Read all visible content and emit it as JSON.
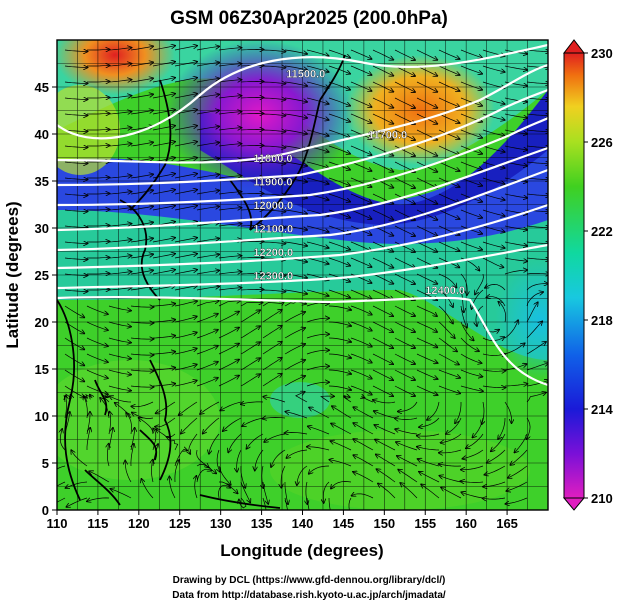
{
  "title": "GSM 06Z30Apr2025 (200.0hPa)",
  "xlabel": "Longitude (degrees)",
  "ylabel": "Latitude  (degrees)",
  "x_ticks": [
    "110",
    "115",
    "120",
    "125",
    "130",
    "135",
    "140",
    "145",
    "150",
    "155",
    "160",
    "165"
  ],
  "y_ticks": [
    "0",
    "5",
    "10",
    "15",
    "20",
    "25",
    "30",
    "35",
    "40",
    "45"
  ],
  "colorbar_ticks": [
    "230",
    "226",
    "222",
    "218",
    "214",
    "210"
  ],
  "contour_labels": [
    "11500.0",
    "11700.0",
    "11800.0",
    "11900.0",
    "12000.0",
    "12100.0",
    "12200.0",
    "12300.0",
    "12400.0"
  ],
  "credit_line1": "Drawing by DCL (https://www.gfd-dennou.org/library/dcl/)",
  "credit_line2": "Data from http://database.rish.kyoto-u.ac.jp/arch/jmadata/",
  "chart_data": {
    "type": "map",
    "quantity_shaded": "temperature-like field (colorbar 210–230)",
    "xlim": [
      110,
      170
    ],
    "ylim": [
      0,
      50
    ],
    "colorbar_range": [
      210,
      230
    ],
    "contours": [
      {
        "label": "11500.0",
        "lon": 138,
        "lat": 46
      },
      {
        "label": "11700.0",
        "lon": 148,
        "lat": 39.5
      },
      {
        "label": "11800.0",
        "lon": 134,
        "lat": 37
      },
      {
        "label": "11900.0",
        "lon": 134,
        "lat": 34.5
      },
      {
        "label": "12000.0",
        "lon": 134,
        "lat": 32
      },
      {
        "label": "12100.0",
        "lon": 134,
        "lat": 29.5
      },
      {
        "label": "12200.0",
        "lon": 134,
        "lat": 27
      },
      {
        "label": "12300.0",
        "lon": 134,
        "lat": 24.5
      },
      {
        "label": "12400.0",
        "lon": 155,
        "lat": 23
      }
    ]
  }
}
